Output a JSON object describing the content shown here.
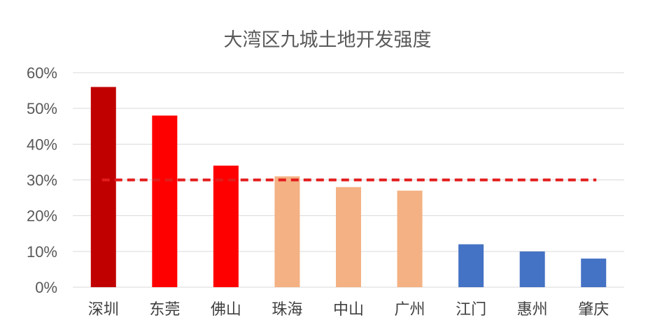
{
  "chart_data": {
    "type": "bar",
    "title": "大湾区九城土地开发强度",
    "xlabel": "",
    "ylabel": "",
    "categories": [
      "深圳",
      "东莞",
      "佛山",
      "珠海",
      "中山",
      "广州",
      "江门",
      "惠州",
      "肇庆"
    ],
    "values": [
      56,
      48,
      34,
      31,
      28,
      27,
      12,
      10,
      8
    ],
    "value_unit": "%",
    "ylim": [
      0,
      60
    ],
    "yticks": [
      0,
      10,
      20,
      30,
      40,
      50,
      60
    ],
    "ytick_labels": [
      "0%",
      "10%",
      "20%",
      "30%",
      "40%",
      "50%",
      "60%"
    ],
    "grid": true,
    "legend": "none",
    "bar_colors": [
      "#c00000",
      "#ff0000",
      "#ff0000",
      "#f4b183",
      "#f4b183",
      "#f4b183",
      "#4472c4",
      "#4472c4",
      "#4472c4"
    ],
    "reference_line": {
      "value": 30,
      "style": "dashed",
      "color": "#e31c1c"
    }
  }
}
